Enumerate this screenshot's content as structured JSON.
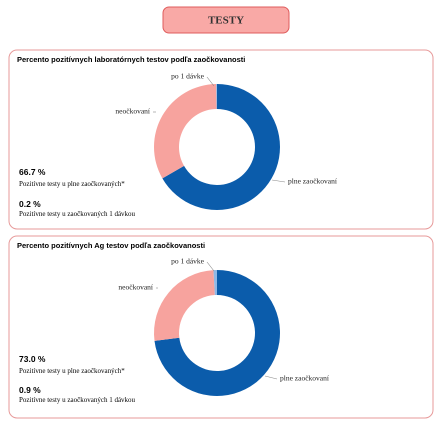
{
  "header": {
    "title": "TESTY"
  },
  "chart_data": [
    {
      "type": "donut",
      "title": "Percento pozitívnych laboratórnych testov podľa zaočkovanosti",
      "categories": [
        "plne zaočkovaní",
        "neočkovaní",
        "po 1 dávke"
      ],
      "values": [
        66.7,
        33.1,
        0.2
      ],
      "value_labels": [
        "66.7 %",
        null,
        "0.2 %"
      ],
      "value_captions": [
        "Pozitívne testy u plne zaočkovaných*",
        null,
        "Pozitívne testy u zaočkovaných 1 dávkou"
      ],
      "colors": [
        "#0b5cab",
        "#f7a39e",
        "#8fb8e6"
      ]
    },
    {
      "type": "donut",
      "title": "Percento pozitívnych Ag testov podľa zaočkovanosti",
      "categories": [
        "plne zaočkovaní",
        "neočkovaní",
        "po 1 dávke"
      ],
      "values": [
        73.0,
        26.1,
        0.9
      ],
      "value_labels": [
        "73.0 %",
        null,
        "0.9 %"
      ],
      "value_captions": [
        "Pozitívne testy u plne zaočkovaných*",
        null,
        "Pozitívne testy u zaočkovaných 1 dávkou"
      ],
      "colors": [
        "#0b5cab",
        "#f7a39e",
        "#8fb8e6"
      ]
    }
  ]
}
